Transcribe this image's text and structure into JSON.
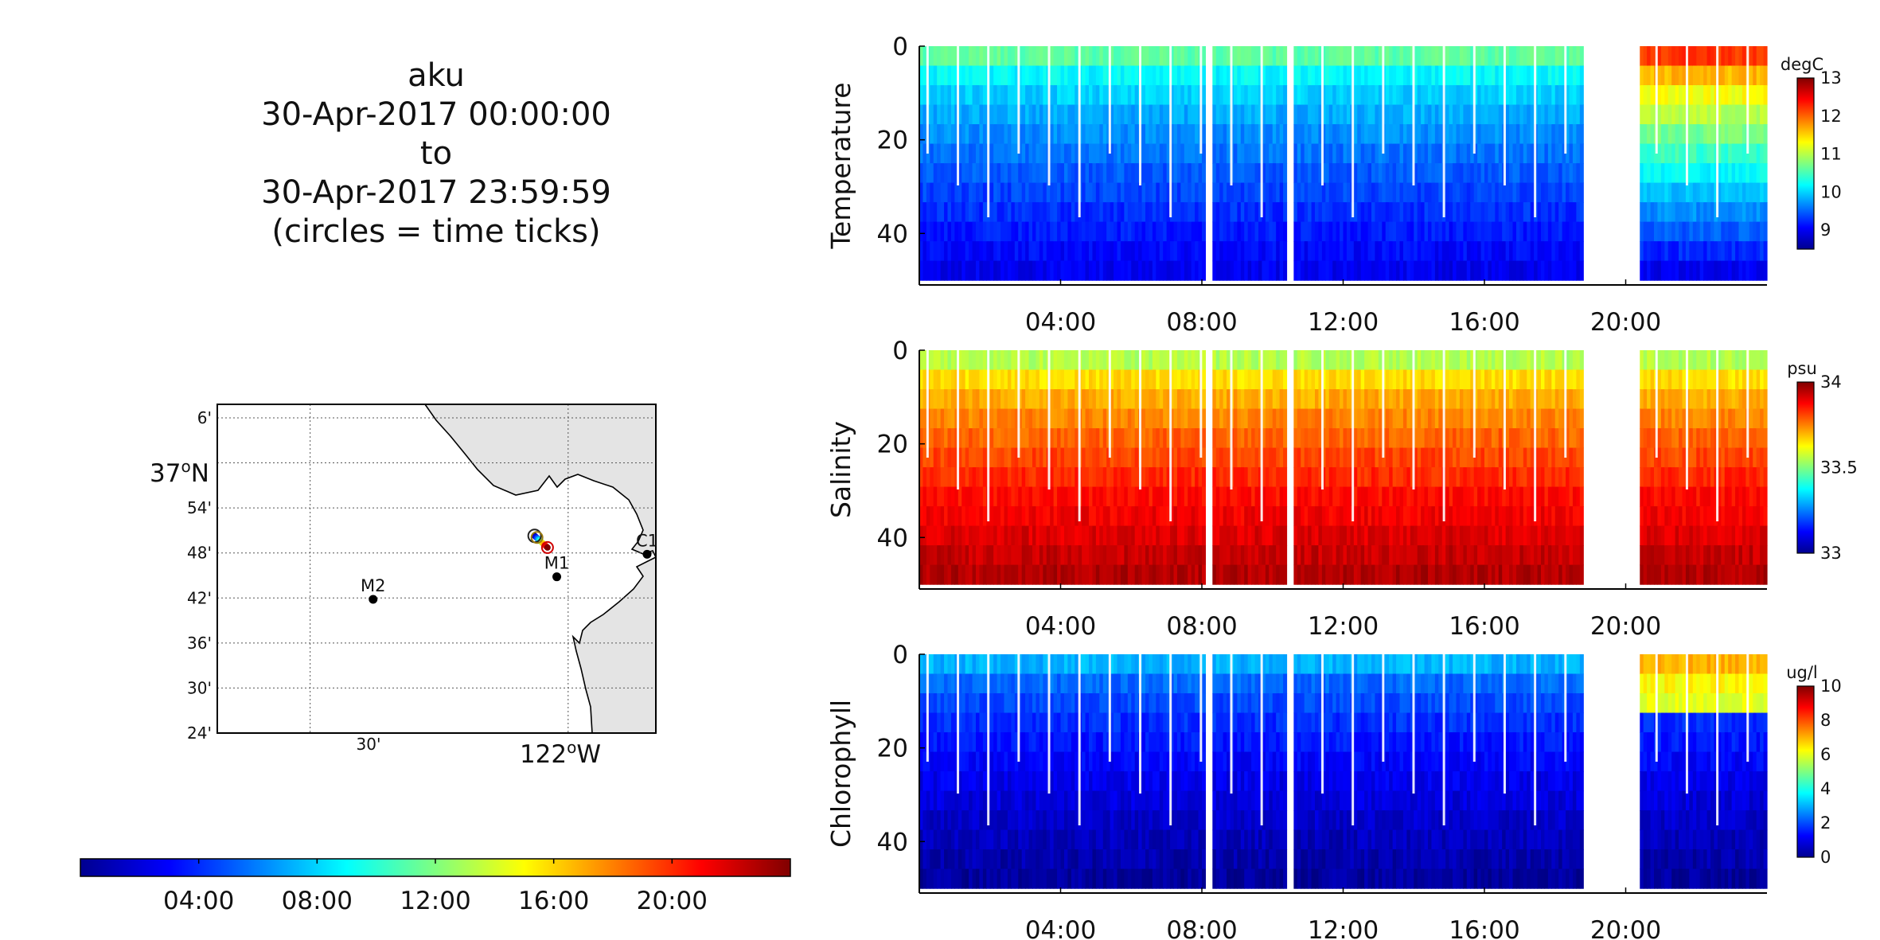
{
  "info": {
    "vehicle": "aku",
    "start": "30-Apr-2017 00:00:00",
    "to_word": "to",
    "end": "30-Apr-2017 23:59:59",
    "note": "(circles = time ticks)"
  },
  "map": {
    "lat_ticks": [
      "6'",
      "37",
      "54'",
      "48'",
      "42'",
      "36'",
      "30'",
      "24'"
    ],
    "lat_major_label": "37",
    "lat_major_deg": "o",
    "lat_major_hem": "N",
    "lon_ticks": [
      "30'",
      "122"
    ],
    "lon_major_deg": "o",
    "lon_major_hem": "W",
    "stations": [
      {
        "name": "C1",
        "lat": 36.797,
        "lon": -121.847
      },
      {
        "name": "M1",
        "lat": 36.747,
        "lon": -122.022
      },
      {
        "name": "M2",
        "lat": 36.697,
        "lon": -122.378
      }
    ],
    "track": {
      "start_lat": 36.838,
      "start_lon": -122.065,
      "end_lat": 36.812,
      "end_lon": -122.04
    },
    "colors": {
      "land": "#e4e4e4",
      "coast": "#000000"
    }
  },
  "time_colorbar": {
    "ticks": [
      "04:00",
      "08:00",
      "12:00",
      "16:00",
      "20:00"
    ],
    "colormap": "jet"
  },
  "chart_data": [
    {
      "type": "heatmap",
      "ylabel": "Temperature",
      "units": "degC",
      "clim": [
        8.5,
        13
      ],
      "cbar_ticks": [
        9,
        10,
        11,
        12,
        13
      ],
      "yticks": [
        0,
        20,
        40
      ],
      "ylim": [
        0,
        51
      ],
      "xlim": [
        "00:00",
        "23:59"
      ],
      "xticks": [
        "04:00",
        "08:00",
        "12:00",
        "16:00",
        "20:00"
      ],
      "surface_value": 10.6,
      "deep_value": 9.0,
      "gaps": [
        [
          "08:00",
          "08:12"
        ],
        [
          "10:18",
          "10:30"
        ],
        [
          "18:42",
          "20:24"
        ]
      ]
    },
    {
      "type": "heatmap",
      "ylabel": "Salinity",
      "units": "psu",
      "clim": [
        33,
        34
      ],
      "cbar_ticks": [
        33,
        33.5,
        34
      ],
      "yticks": [
        0,
        20,
        40
      ],
      "ylim": [
        0,
        51
      ],
      "xlim": [
        "00:00",
        "23:59"
      ],
      "xticks": [
        "04:00",
        "08:00",
        "12:00",
        "16:00",
        "20:00"
      ],
      "surface_value": 33.55,
      "deep_value": 33.95,
      "gaps": [
        [
          "08:00",
          "08:12"
        ],
        [
          "10:18",
          "10:30"
        ],
        [
          "18:42",
          "20:24"
        ]
      ]
    },
    {
      "type": "heatmap",
      "ylabel": "Chlorophyll",
      "units": "ug/l",
      "clim": [
        0,
        10
      ],
      "cbar_ticks": [
        0,
        2,
        4,
        6,
        8,
        10
      ],
      "yticks": [
        0,
        20,
        40
      ],
      "ylim": [
        0,
        51
      ],
      "xlim": [
        "00:00",
        "23:59"
      ],
      "xticks": [
        "04:00",
        "08:00",
        "12:00",
        "16:00",
        "20:00"
      ],
      "surface_value": 3.0,
      "deep_value": 0.3,
      "gaps": [
        [
          "08:00",
          "08:12"
        ],
        [
          "10:18",
          "10:30"
        ],
        [
          "18:42",
          "20:24"
        ]
      ]
    }
  ]
}
